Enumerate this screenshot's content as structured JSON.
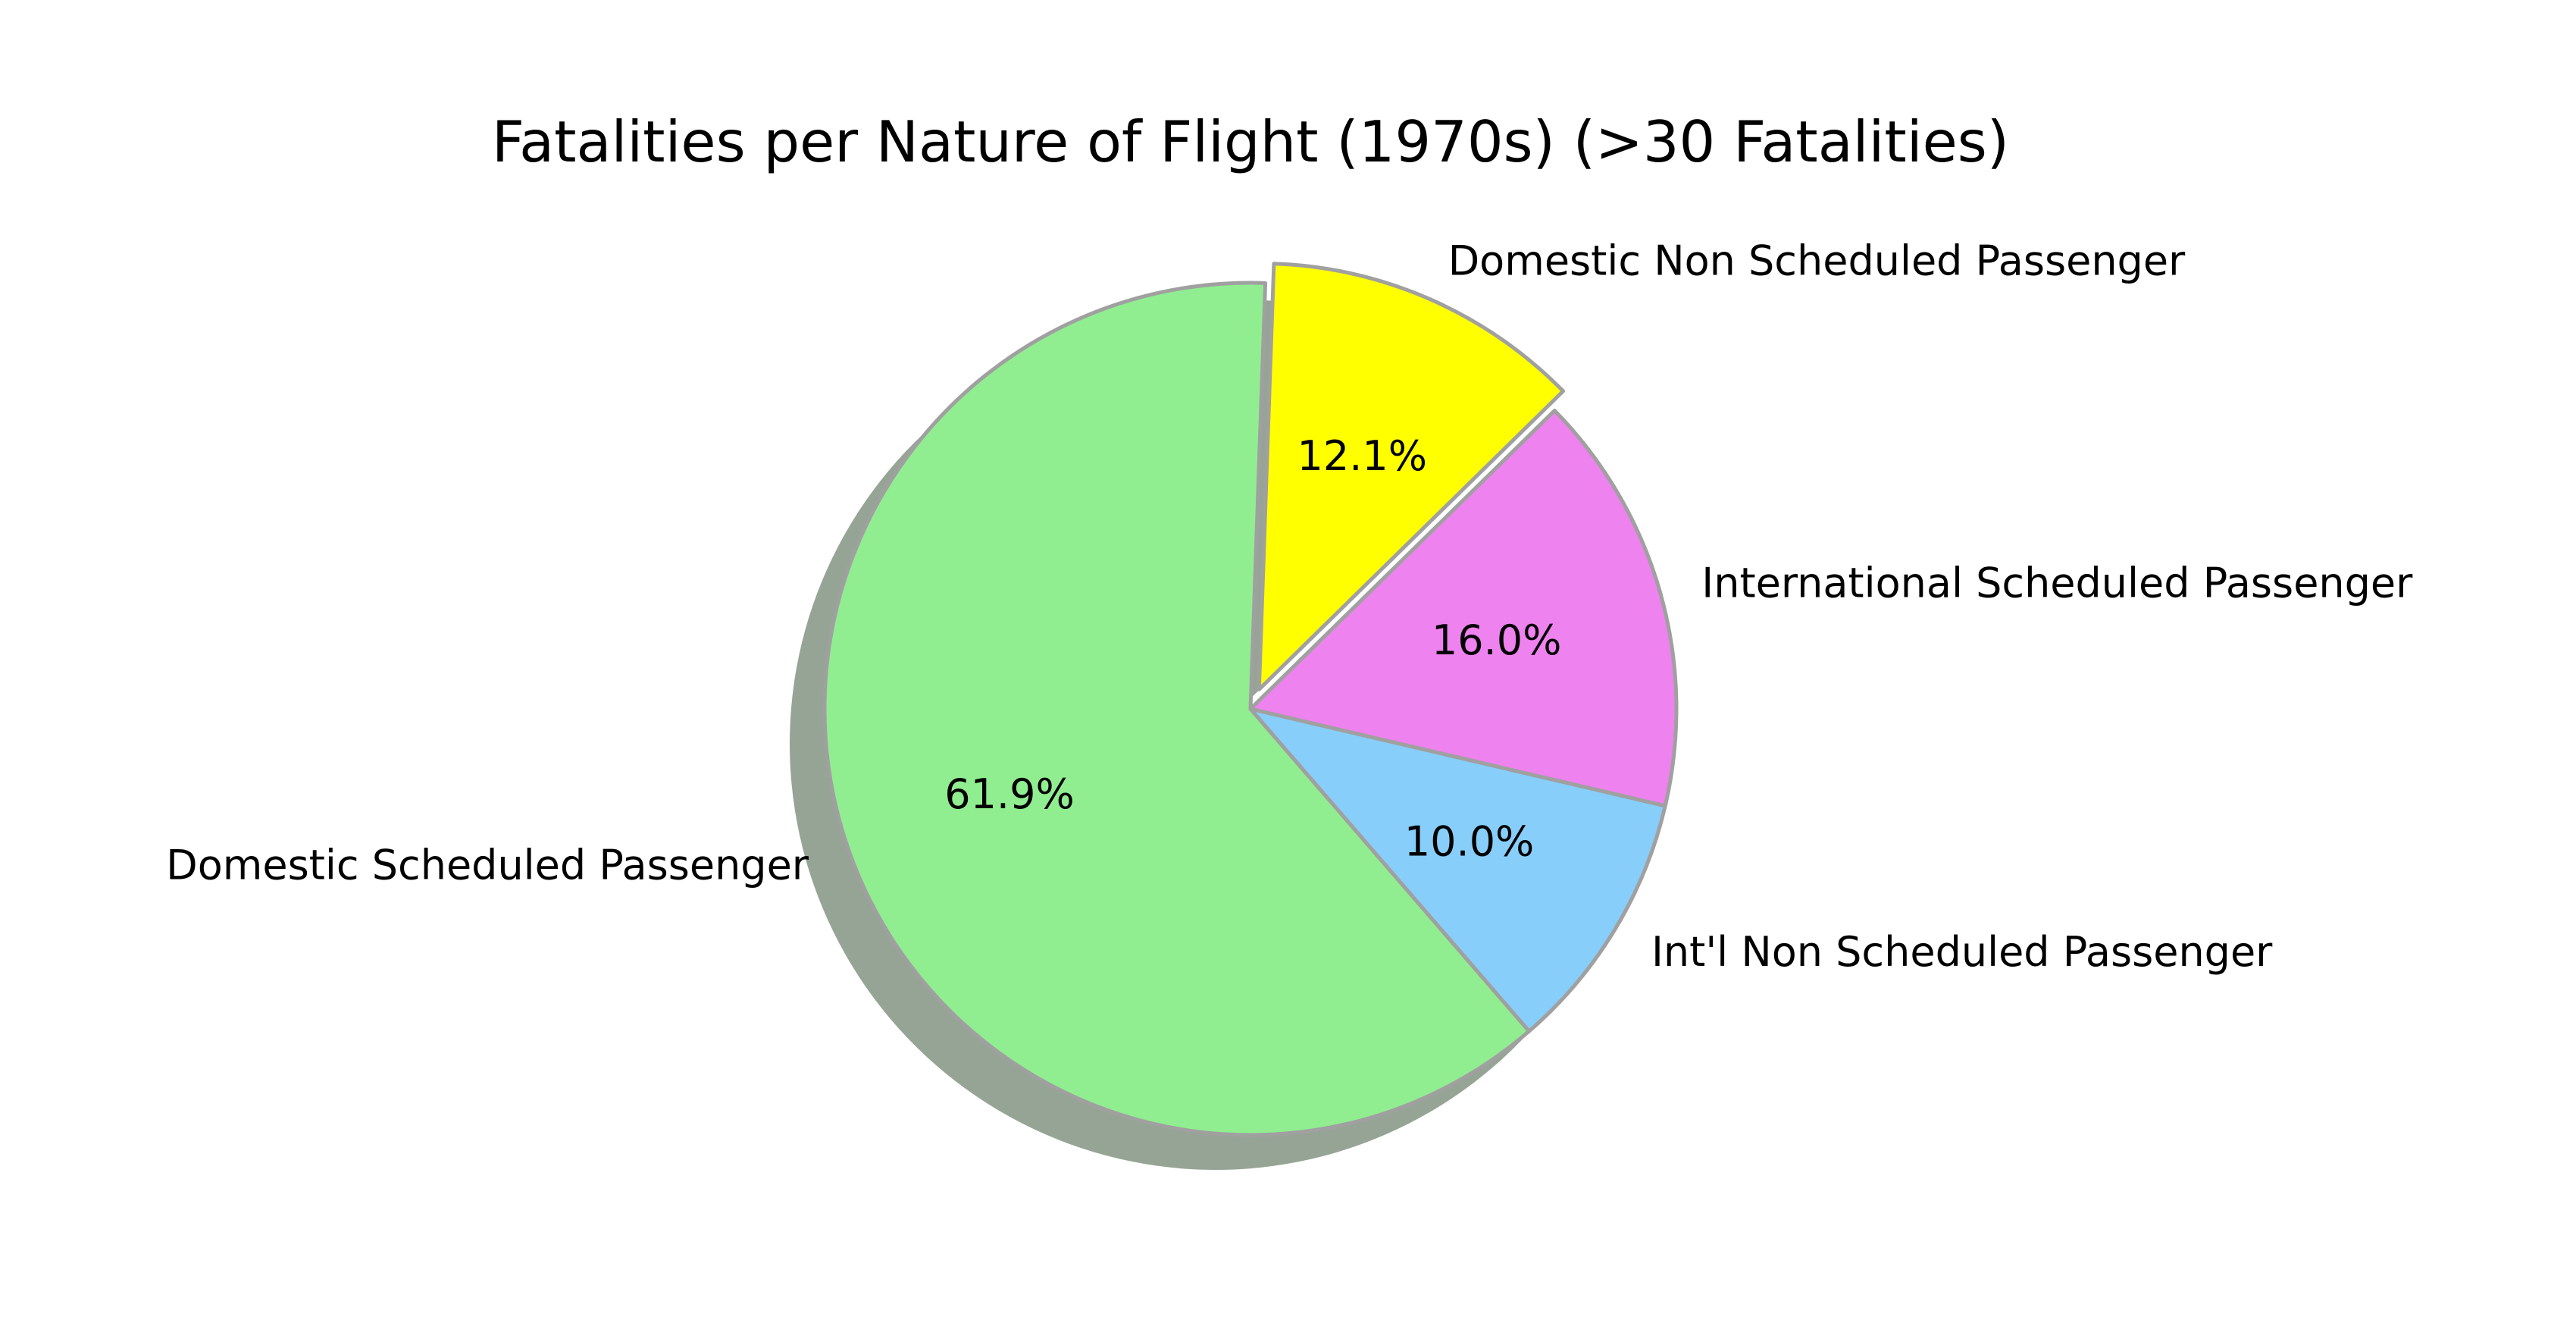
{
  "chart_data": {
    "type": "pie",
    "title": "Fatalities per Nature of Flight (1970s) (>30 Fatalities)",
    "slices": [
      {
        "label": "Domestic Non Scheduled Passenger",
        "percent": 12.1,
        "percent_label": "12.1%",
        "color": "#ffff00",
        "exploded": true
      },
      {
        "label": "International Scheduled Passenger",
        "percent": 16.0,
        "percent_label": "16.0%",
        "color": "#ee82ee",
        "exploded": false
      },
      {
        "label": "Int'l Non Scheduled Passenger",
        "percent": 10.0,
        "percent_label": "10.0%",
        "color": "#87cefa",
        "exploded": false
      },
      {
        "label": "Domestic Scheduled Passenger",
        "percent": 61.9,
        "percent_label": "61.9%",
        "color": "#90ee90",
        "exploded": false
      }
    ],
    "start_angle_deg": 88,
    "direction": "clockwise",
    "shadow": true,
    "legend": "none"
  }
}
